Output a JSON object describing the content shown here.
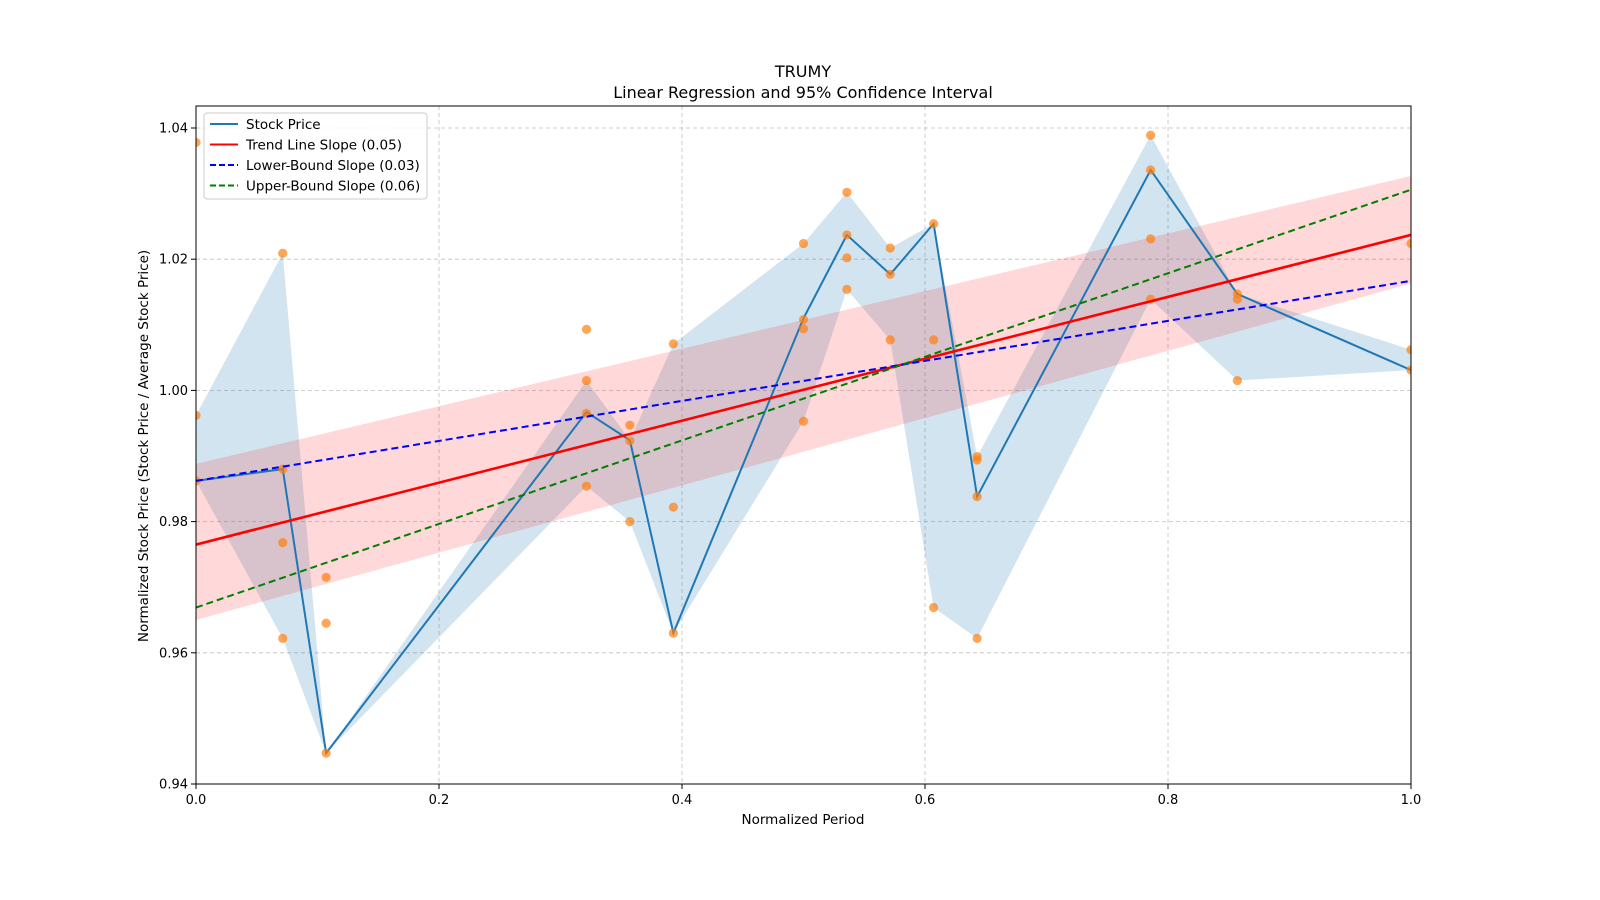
{
  "chart_data": {
    "type": "line",
    "title": "TRUMY",
    "subtitle": "Linear Regression and 95% Confidence Interval",
    "xlabel": "Normalized Period",
    "ylabel": "Normalized Stock Price (Stock Price / Average Stock Price)",
    "xlim": [
      0.0,
      1.0
    ],
    "ylim": [
      0.94,
      1.04
    ],
    "xticks": [
      "0.0",
      "0.2",
      "0.4",
      "0.6",
      "0.8",
      "1.0"
    ],
    "xtick_values": [
      0.0,
      0.2,
      0.4,
      0.6,
      0.8,
      1.0
    ],
    "yticks": [
      "0.94",
      "0.96",
      "0.98",
      "1.00",
      "1.02",
      "1.04"
    ],
    "ytick_values": [
      0.94,
      0.96,
      0.98,
      1.0,
      1.02,
      1.04
    ],
    "grid": true,
    "legend_position": "top-left",
    "legend": [
      {
        "label": "Stock Price",
        "color": "#1f77b4",
        "style": "solid"
      },
      {
        "label": "Trend Line Slope (0.05)",
        "color": "#ff0000",
        "style": "solid"
      },
      {
        "label": "Lower-Bound Slope (0.03)",
        "color": "#0000ff",
        "style": "dashed"
      },
      {
        "label": "Upper-Bound Slope (0.06)",
        "color": "#008000",
        "style": "dashed"
      }
    ],
    "stock_price": {
      "x": [
        0.0,
        0.0714,
        0.1071,
        0.3214,
        0.3571,
        0.3929,
        0.5,
        0.5357,
        0.5714,
        0.6071,
        0.6429,
        0.7857,
        0.8571,
        1.0
      ],
      "y": [
        0.9862,
        0.988,
        0.9447,
        0.9967,
        0.9924,
        0.963,
        1.011,
        1.0237,
        1.0177,
        1.0254,
        0.9838,
        1.0336,
        1.0147,
        1.0031
      ]
    },
    "range_band": {
      "x": [
        0.0,
        0.0714,
        0.1071,
        0.3214,
        0.3571,
        0.3929,
        0.5,
        0.5357,
        0.5714,
        0.6071,
        0.6429,
        0.7857,
        0.8571,
        1.0
      ],
      "low": [
        0.9862,
        0.9622,
        0.9447,
        0.9854,
        0.98,
        0.963,
        0.9953,
        1.0154,
        1.0077,
        0.9669,
        0.9622,
        1.0139,
        1.0015,
        1.0031
      ],
      "high": [
        0.9962,
        1.0209,
        0.9447,
        1.0015,
        0.9924,
        1.0071,
        1.0224,
        1.0302,
        1.0217,
        1.0254,
        0.9899,
        1.0389,
        1.0147,
        1.0062
      ]
    },
    "scatter": [
      {
        "x": 0.0,
        "y": 1.0378
      },
      {
        "x": 0.0,
        "y": 0.9962
      },
      {
        "x": 0.0,
        "y": 0.9862
      },
      {
        "x": 0.0714,
        "y": 1.0209
      },
      {
        "x": 0.0714,
        "y": 0.988
      },
      {
        "x": 0.0714,
        "y": 0.9768
      },
      {
        "x": 0.0714,
        "y": 0.9622
      },
      {
        "x": 0.1071,
        "y": 0.9715
      },
      {
        "x": 0.1071,
        "y": 0.9645
      },
      {
        "x": 0.1071,
        "y": 0.9447
      },
      {
        "x": 0.3214,
        "y": 1.0093
      },
      {
        "x": 0.3214,
        "y": 1.0015
      },
      {
        "x": 0.3214,
        "y": 0.9965
      },
      {
        "x": 0.3214,
        "y": 0.9854
      },
      {
        "x": 0.3571,
        "y": 0.9947
      },
      {
        "x": 0.3571,
        "y": 0.9923
      },
      {
        "x": 0.3571,
        "y": 0.98
      },
      {
        "x": 0.3929,
        "y": 1.0071
      },
      {
        "x": 0.3929,
        "y": 0.9822
      },
      {
        "x": 0.3929,
        "y": 0.963
      },
      {
        "x": 0.5,
        "y": 1.0224
      },
      {
        "x": 0.5,
        "y": 1.0108
      },
      {
        "x": 0.5,
        "y": 1.0094
      },
      {
        "x": 0.5,
        "y": 0.9953
      },
      {
        "x": 0.5357,
        "y": 1.0302
      },
      {
        "x": 0.5357,
        "y": 1.0237
      },
      {
        "x": 0.5357,
        "y": 1.0202
      },
      {
        "x": 0.5357,
        "y": 1.0154
      },
      {
        "x": 0.5714,
        "y": 1.0217
      },
      {
        "x": 0.5714,
        "y": 1.0177
      },
      {
        "x": 0.5714,
        "y": 1.0077
      },
      {
        "x": 0.6071,
        "y": 1.0254
      },
      {
        "x": 0.6071,
        "y": 1.0077
      },
      {
        "x": 0.6071,
        "y": 0.9669
      },
      {
        "x": 0.6429,
        "y": 0.9899
      },
      {
        "x": 0.6429,
        "y": 0.9894
      },
      {
        "x": 0.6429,
        "y": 0.9838
      },
      {
        "x": 0.6429,
        "y": 0.9622
      },
      {
        "x": 0.7857,
        "y": 1.0389
      },
      {
        "x": 0.7857,
        "y": 1.0336
      },
      {
        "x": 0.7857,
        "y": 1.0231
      },
      {
        "x": 0.7857,
        "y": 1.0139
      },
      {
        "x": 0.8571,
        "y": 1.0147
      },
      {
        "x": 0.8571,
        "y": 1.0139
      },
      {
        "x": 0.8571,
        "y": 1.0015
      },
      {
        "x": 1.0,
        "y": 1.0224
      },
      {
        "x": 1.0,
        "y": 1.0062
      },
      {
        "x": 1.0,
        "y": 1.0031
      }
    ],
    "trend_line": {
      "x": [
        0.0,
        1.0
      ],
      "y": [
        0.9765,
        1.0237
      ],
      "slope": 0.05
    },
    "lower_bound_line": {
      "x": [
        0.0,
        1.0
      ],
      "y": [
        0.9862,
        1.0167
      ],
      "slope": 0.03
    },
    "upper_bound_line": {
      "x": [
        0.0,
        1.0
      ],
      "y": [
        0.9669,
        1.0306
      ],
      "slope": 0.06
    },
    "confidence_interval": {
      "x": [
        0.0,
        1.0
      ],
      "low": [
        0.965,
        1.0163
      ],
      "high": [
        0.9888,
        1.0327
      ]
    },
    "colors": {
      "stock_line": "#1f77b4",
      "range_band": "#1f77b4",
      "scatter": "#ff7f0e",
      "trend": "#ff0000",
      "ci_band": "#ff0000",
      "lower": "#0000ff",
      "upper": "#008000",
      "grid": "#b0b0b0"
    }
  }
}
